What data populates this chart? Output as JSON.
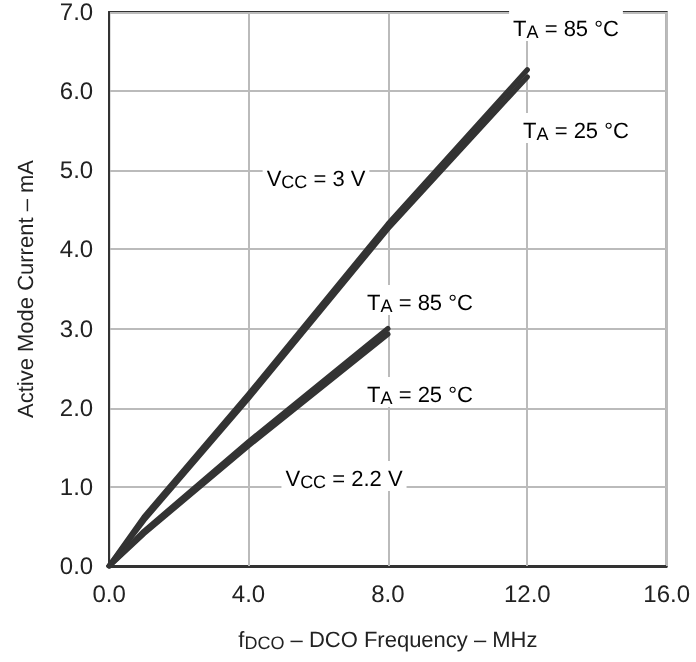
{
  "chart_data": {
    "type": "line",
    "xlabel": "f$_{DCO}$ – DCO Frequency – MHz",
    "ylabel": "Active Mode Current – mA",
    "xlim": [
      0,
      16
    ],
    "ylim": [
      0,
      7
    ],
    "xticks": [
      {
        "value": 0,
        "label": "0.0"
      },
      {
        "value": 4,
        "label": "4.0"
      },
      {
        "value": 8,
        "label": "8.0"
      },
      {
        "value": 12,
        "label": "12.0"
      },
      {
        "value": 16,
        "label": "16.0"
      }
    ],
    "yticks": [
      {
        "value": 0,
        "label": "0.0"
      },
      {
        "value": 1,
        "label": "1.0"
      },
      {
        "value": 2,
        "label": "2.0"
      },
      {
        "value": 3,
        "label": "3.0"
      },
      {
        "value": 4,
        "label": "4.0"
      },
      {
        "value": 5,
        "label": "5.0"
      },
      {
        "value": 6,
        "label": "6.0"
      },
      {
        "value": 7,
        "label": "7.0"
      }
    ],
    "grid": true,
    "marker": "none",
    "line_style": "solid",
    "series": [
      {
        "color": "#333333",
        "x": [
          0,
          1,
          4,
          8,
          12
        ],
        "values": [
          0,
          0.62,
          2.17,
          4.32,
          6.27
        ]
      },
      {
        "color": "#333333",
        "x": [
          0,
          1,
          4,
          8,
          12
        ],
        "values": [
          0,
          0.58,
          2.12,
          4.26,
          6.18
        ]
      },
      {
        "color": "#333333",
        "x": [
          0,
          1,
          4,
          8
        ],
        "values": [
          0,
          0.44,
          1.57,
          3.0
        ]
      },
      {
        "color": "#333333",
        "x": [
          0,
          1,
          4,
          8
        ],
        "values": [
          0,
          0.41,
          1.52,
          2.93
        ]
      }
    ],
    "annotations": [
      "T$_{A}$ = 85 °C",
      "T$_{A}$ = 25 °C",
      "V$_{CC}$ = 3 V",
      "T$_{A}$ = 85 °C",
      "T$_{A}$ = 25 °C",
      "V$_{CC}$ = 2.2 V"
    ]
  }
}
